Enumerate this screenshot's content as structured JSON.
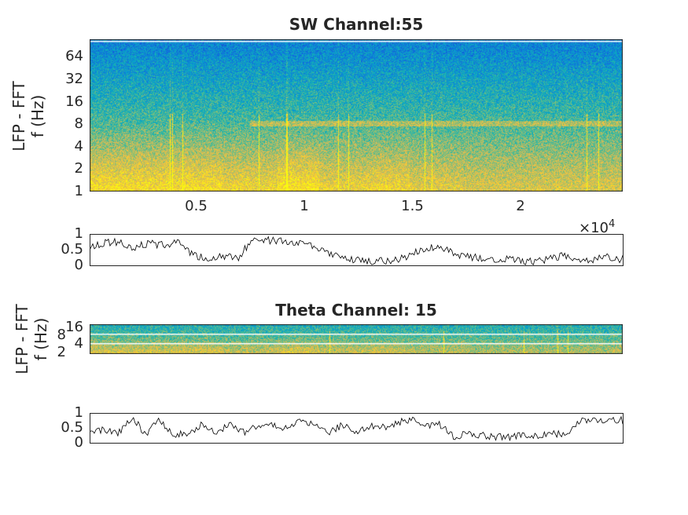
{
  "chart_data": [
    {
      "type": "heatmap",
      "title": "SW Channel:55",
      "ylabel": [
        "LFP - FFT",
        "f (Hz)"
      ],
      "yscale": "log2",
      "yticks": [
        1,
        2,
        4,
        8,
        16,
        32,
        64
      ],
      "ylim": [
        1,
        111
      ],
      "xticks": [
        0.5,
        1,
        1.5,
        2
      ],
      "xtick_labels": [
        "0.5",
        "1",
        "1.5",
        "2"
      ],
      "xlim": [
        0,
        2.47
      ],
      "x_exponent": "×10",
      "x_exponent_power": "4",
      "colormap": "parula",
      "band_hz": 8
    },
    {
      "type": "line",
      "ylim": [
        0,
        1
      ],
      "yticks": [
        0,
        0.5,
        1
      ],
      "ytick_labels": [
        "0",
        "0.5",
        "1"
      ],
      "values": [
        0.6,
        0.7,
        0.75,
        0.55,
        0.7,
        0.65,
        0.7,
        0.3,
        0.2,
        0.3,
        0.2,
        0.85,
        0.8,
        0.75,
        0.7,
        0.65,
        0.4,
        0.2,
        0.15,
        0.1,
        0.15,
        0.2,
        0.4,
        0.6,
        0.5,
        0.3,
        0.25,
        0.2,
        0.2,
        0.15,
        0.1,
        0.2,
        0.3,
        0.1,
        0.2,
        0.25,
        0.2
      ]
    },
    {
      "type": "heatmap",
      "title": "Theta Channel: 15",
      "ylabel": [
        "LFP - FFT",
        "f (Hz)"
      ],
      "yscale": "log2",
      "yticks": [
        2,
        4,
        8,
        16
      ],
      "ylim": [
        1.8,
        20
      ],
      "colormap": "parula"
    },
    {
      "type": "line",
      "ylim": [
        0,
        1
      ],
      "yticks": [
        0,
        0.5,
        1
      ],
      "ytick_labels": [
        "0",
        "0.5",
        "1"
      ],
      "values": [
        0.35,
        0.45,
        0.3,
        0.85,
        0.3,
        0.75,
        0.3,
        0.25,
        0.6,
        0.3,
        0.7,
        0.35,
        0.6,
        0.55,
        0.5,
        0.75,
        0.65,
        0.3,
        0.6,
        0.3,
        0.6,
        0.5,
        0.7,
        0.75,
        0.55,
        0.6,
        0.2,
        0.3,
        0.25,
        0.2,
        0.2,
        0.25,
        0.2,
        0.3,
        0.25,
        0.8,
        0.75,
        0.8,
        0.75
      ]
    }
  ]
}
